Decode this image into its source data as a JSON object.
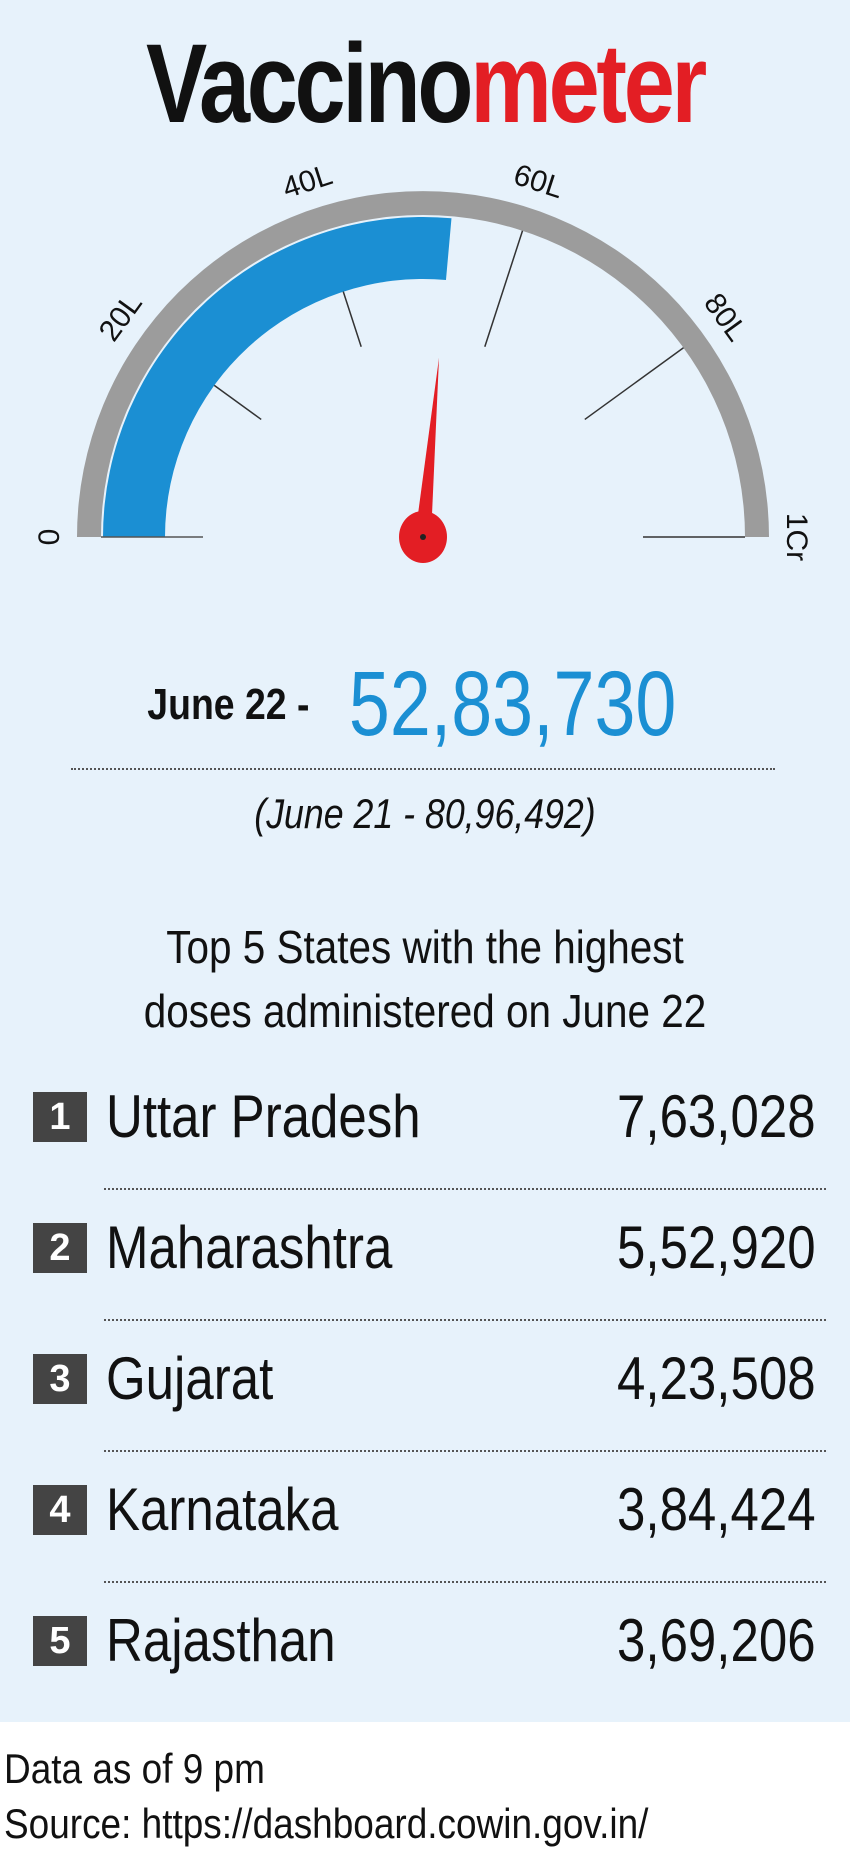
{
  "title": {
    "part1": "Vaccino",
    "part2": "meter"
  },
  "chart_data": {
    "type": "gauge",
    "min": 0,
    "max": 100,
    "unit": "lakh",
    "value": 52.8373,
    "tick_labels": [
      "0",
      "20L",
      "40L",
      "60L",
      "80L",
      "1Cr"
    ],
    "tick_values": [
      0,
      20,
      40,
      60,
      80,
      100
    ],
    "colors": {
      "fill": "#1b8fd3",
      "track": "#9c9c9c",
      "needle": "#e31e24"
    }
  },
  "headline": {
    "date": "June 22 -",
    "value": "52,83,730"
  },
  "previous": "(June 21 - 80,96,492)",
  "table": {
    "heading_line1": "Top 5 States with the highest",
    "heading_line2": "doses administered on June 22",
    "rows": [
      {
        "rank": "1",
        "state": "Uttar Pradesh",
        "doses": "7,63,028"
      },
      {
        "rank": "2",
        "state": "Maharashtra",
        "doses": "5,52,920"
      },
      {
        "rank": "3",
        "state": "Gujarat",
        "doses": "4,23,508"
      },
      {
        "rank": "4",
        "state": "Karnataka",
        "doses": "3,84,424"
      },
      {
        "rank": "5",
        "state": "Rajasthan",
        "doses": "3,69,206"
      }
    ]
  },
  "footer": {
    "note": "Data as of 9 pm",
    "source": "Source: https://dashboard.cowin.gov.in/"
  }
}
